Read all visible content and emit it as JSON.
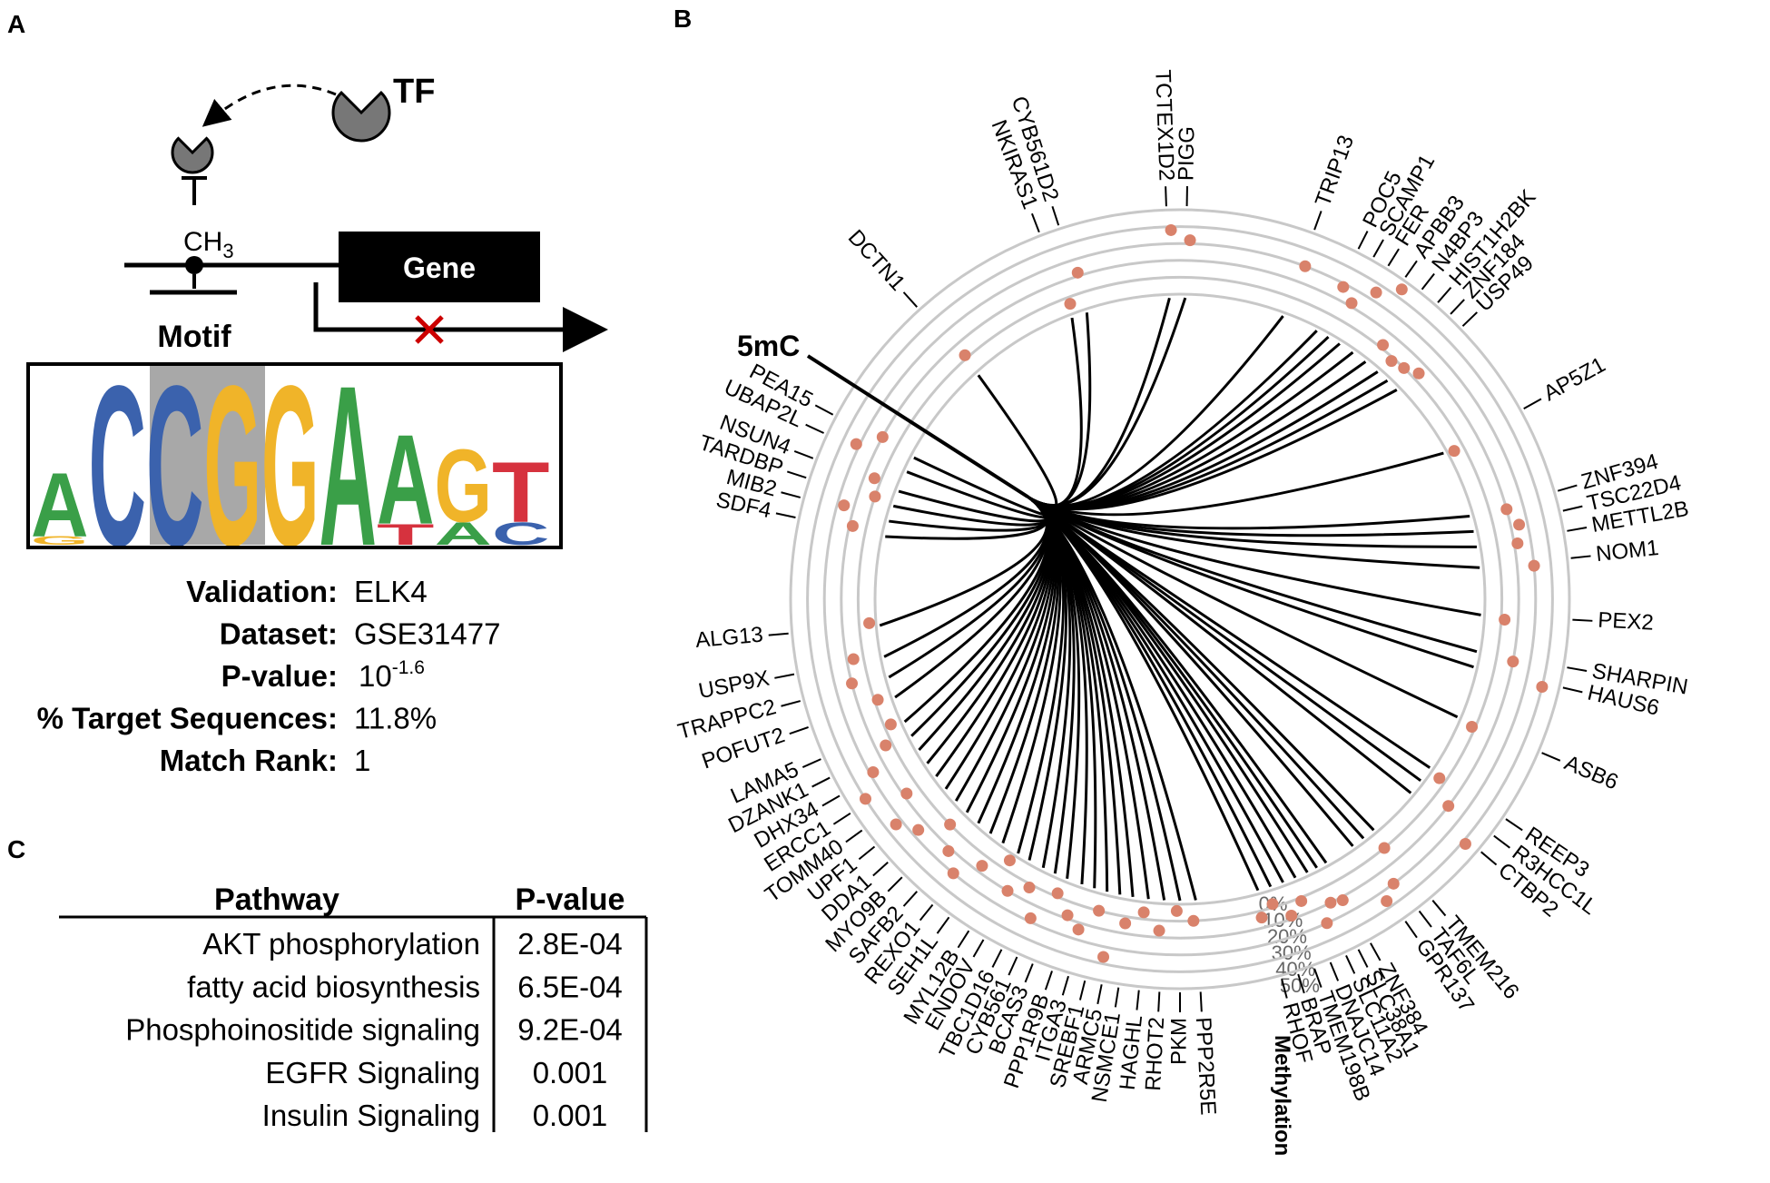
{
  "panel_labels": [
    "A",
    "B",
    "C"
  ],
  "panel_a": {
    "tf": "TF",
    "methyl": "CH",
    "methyl_sub": "3",
    "gene": "Gene",
    "motif": "Motif",
    "logo": [
      [
        {
          "letter": "A",
          "color": "#3a9f48",
          "height": 0.37
        },
        {
          "letter": "G",
          "color": "#f0b429",
          "height": 0.05
        }
      ],
      [
        {
          "letter": "C",
          "color": "#3b62ad",
          "height": 0.93
        }
      ],
      [
        {
          "letter": "C",
          "color": "#3b62ad",
          "height": 0.93
        }
      ],
      [
        {
          "letter": "G",
          "color": "#f0b429",
          "height": 0.93
        }
      ],
      [
        {
          "letter": "G",
          "color": "#f0b429",
          "height": 0.93
        }
      ],
      [
        {
          "letter": "A",
          "color": "#3a9f48",
          "height": 0.93
        }
      ],
      [
        {
          "letter": "A",
          "color": "#3a9f48",
          "height": 0.52
        },
        {
          "letter": "T",
          "color": "#d6323e",
          "height": 0.12
        }
      ],
      [
        {
          "letter": "G",
          "color": "#f0b429",
          "height": 0.42
        },
        {
          "letter": "A",
          "color": "#3a9f48",
          "height": 0.13
        }
      ],
      [
        {
          "letter": "T",
          "color": "#d6323e",
          "height": 0.35
        },
        {
          "letter": "C",
          "color": "#3b62ad",
          "height": 0.13
        }
      ]
    ],
    "info": [
      {
        "label": "Validation:",
        "value": "ELK4"
      },
      {
        "label": "Dataset:",
        "value": "GSE31477"
      },
      {
        "label": "P-value:",
        "value": "10",
        "superscript": "-1.6"
      },
      {
        "label": "% Target Sequences:",
        "value": "11.8%"
      },
      {
        "label": "Match Rank:",
        "value": "1"
      }
    ]
  },
  "panel_b": {
    "hub_label": "5mC",
    "axis_title": "Methylation",
    "ticks": [
      {
        "value": 0,
        "label": "0%"
      },
      {
        "value": 10,
        "label": "10%"
      },
      {
        "value": 20,
        "label": "20%"
      },
      {
        "value": 30,
        "label": "30%"
      },
      {
        "value": 40,
        "label": "40%"
      },
      {
        "value": 50,
        "label": "50%"
      }
    ],
    "genes": [
      {
        "name": "TCTEX1D2",
        "methylation": 38
      },
      {
        "name": "PIGG",
        "methylation": 32
      },
      {
        "name": "TRIP13",
        "methylation": 30
      },
      {
        "name": "POC5",
        "methylation": 28
      },
      {
        "name": "SCAMP1",
        "methylation": 22
      },
      {
        "name": "FER",
        "methylation": 35
      },
      {
        "name": "APBB3",
        "methylation": 45
      },
      {
        "name": "N4BP3",
        "methylation": 12
      },
      {
        "name": "HIST1H2BK",
        "methylation": 8
      },
      {
        "name": "ZNF184",
        "methylation": 10
      },
      {
        "name": "USP49",
        "methylation": 14
      },
      {
        "name": "AP5Z1",
        "methylation": 4
      },
      {
        "name": "ZNF394",
        "methylation": 20
      },
      {
        "name": "TSC22D4",
        "methylation": 25
      },
      {
        "name": "METTL2B",
        "methylation": 22
      },
      {
        "name": "NOM1",
        "methylation": 30
      },
      {
        "name": "PEX2",
        "methylation": 12
      },
      {
        "name": "SHARPIN",
        "methylation": 20
      },
      {
        "name": "HAUS6",
        "methylation": 40
      },
      {
        "name": "ASB6",
        "methylation": 8
      },
      {
        "name": "REEP3",
        "methylation": 6
      },
      {
        "name": "R3HCC1L",
        "methylation": 20
      },
      {
        "name": "CTBP2",
        "methylation": 42
      },
      {
        "name": "TMEM216",
        "methylation": 10
      },
      {
        "name": "TAF6L",
        "methylation": 30
      },
      {
        "name": "GPR137",
        "methylation": 36
      },
      {
        "name": "ZNF384",
        "methylation": 22
      },
      {
        "name": "SLC38A1",
        "methylation": 20
      },
      {
        "name": "SLC11A2",
        "methylation": 30
      },
      {
        "name": "DNAJC14",
        "methylation": 12
      },
      {
        "name": "TMEM198B",
        "methylation": 18
      },
      {
        "name": "BRAP",
        "methylation": 8
      },
      {
        "name": "RHOF",
        "methylation": 14
      },
      {
        "name": "PPP2R5E",
        "methylation": 10
      },
      {
        "name": "PKM",
        "methylation": 4
      },
      {
        "name": "RHOT2",
        "methylation": 16
      },
      {
        "name": "HAGHL",
        "methylation": 6
      },
      {
        "name": "NSMCE1",
        "methylation": 14
      },
      {
        "name": "ARMC5",
        "methylation": 36
      },
      {
        "name": "SREBF1",
        "methylation": 10
      },
      {
        "name": "ITGA3",
        "methylation": 24
      },
      {
        "name": "PPP1R9B",
        "methylation": 18
      },
      {
        "name": "BCAS3",
        "methylation": 8
      },
      {
        "name": "CYB561",
        "methylation": 28
      },
      {
        "name": "TBC1D16",
        "methylation": 12
      },
      {
        "name": "ENDOV",
        "methylation": 20
      },
      {
        "name": "MYL12B",
        "methylation": 4
      },
      {
        "name": "SEH1L",
        "methylation": 16
      },
      {
        "name": "REXO1",
        "methylation": 30
      },
      {
        "name": "SAFB2",
        "methylation": 22
      },
      {
        "name": "MYO9B",
        "methylation": 10
      },
      {
        "name": "DDA1",
        "methylation": 26
      },
      {
        "name": "UPF1",
        "methylation": 34
      },
      {
        "name": "TOMM40",
        "methylation": 18
      },
      {
        "name": "ERCC1",
        "methylation": 40
      },
      {
        "name": "DHX34",
        "methylation": 28
      },
      {
        "name": "DZANK1",
        "methylation": 14
      },
      {
        "name": "LAMA5",
        "methylation": 6
      },
      {
        "name": "POFUT2",
        "methylation": 8
      },
      {
        "name": "TRAPPC2",
        "methylation": 20
      },
      {
        "name": "USP9X",
        "methylation": 16
      },
      {
        "name": "ALG13",
        "methylation": 4
      },
      {
        "name": "SDF4",
        "methylation": 18
      },
      {
        "name": "MIB2",
        "methylation": 26
      },
      {
        "name": "TARDBP",
        "methylation": 10
      },
      {
        "name": "NSUN4",
        "methylation": 14
      },
      {
        "name": "UBAP2L",
        "methylation": 32
      },
      {
        "name": "PEA15",
        "methylation": 20
      },
      {
        "name": "DCTN1",
        "methylation": 12
      },
      {
        "name": "NKIRAS1",
        "methylation": 6
      },
      {
        "name": "CYB561D2",
        "methylation": 22
      }
    ]
  },
  "panel_c": {
    "columns": [
      "Pathway",
      "P-value"
    ],
    "rows": [
      [
        "AKT phosphorylation",
        "2.8E-04"
      ],
      [
        "fatty acid biosynthesis",
        "6.5E-04"
      ],
      [
        "Phosphoinositide signaling",
        "9.2E-04"
      ],
      [
        "EGFR Signaling",
        "0.001"
      ],
      [
        "Insulin Signaling",
        "0.001"
      ]
    ]
  }
}
